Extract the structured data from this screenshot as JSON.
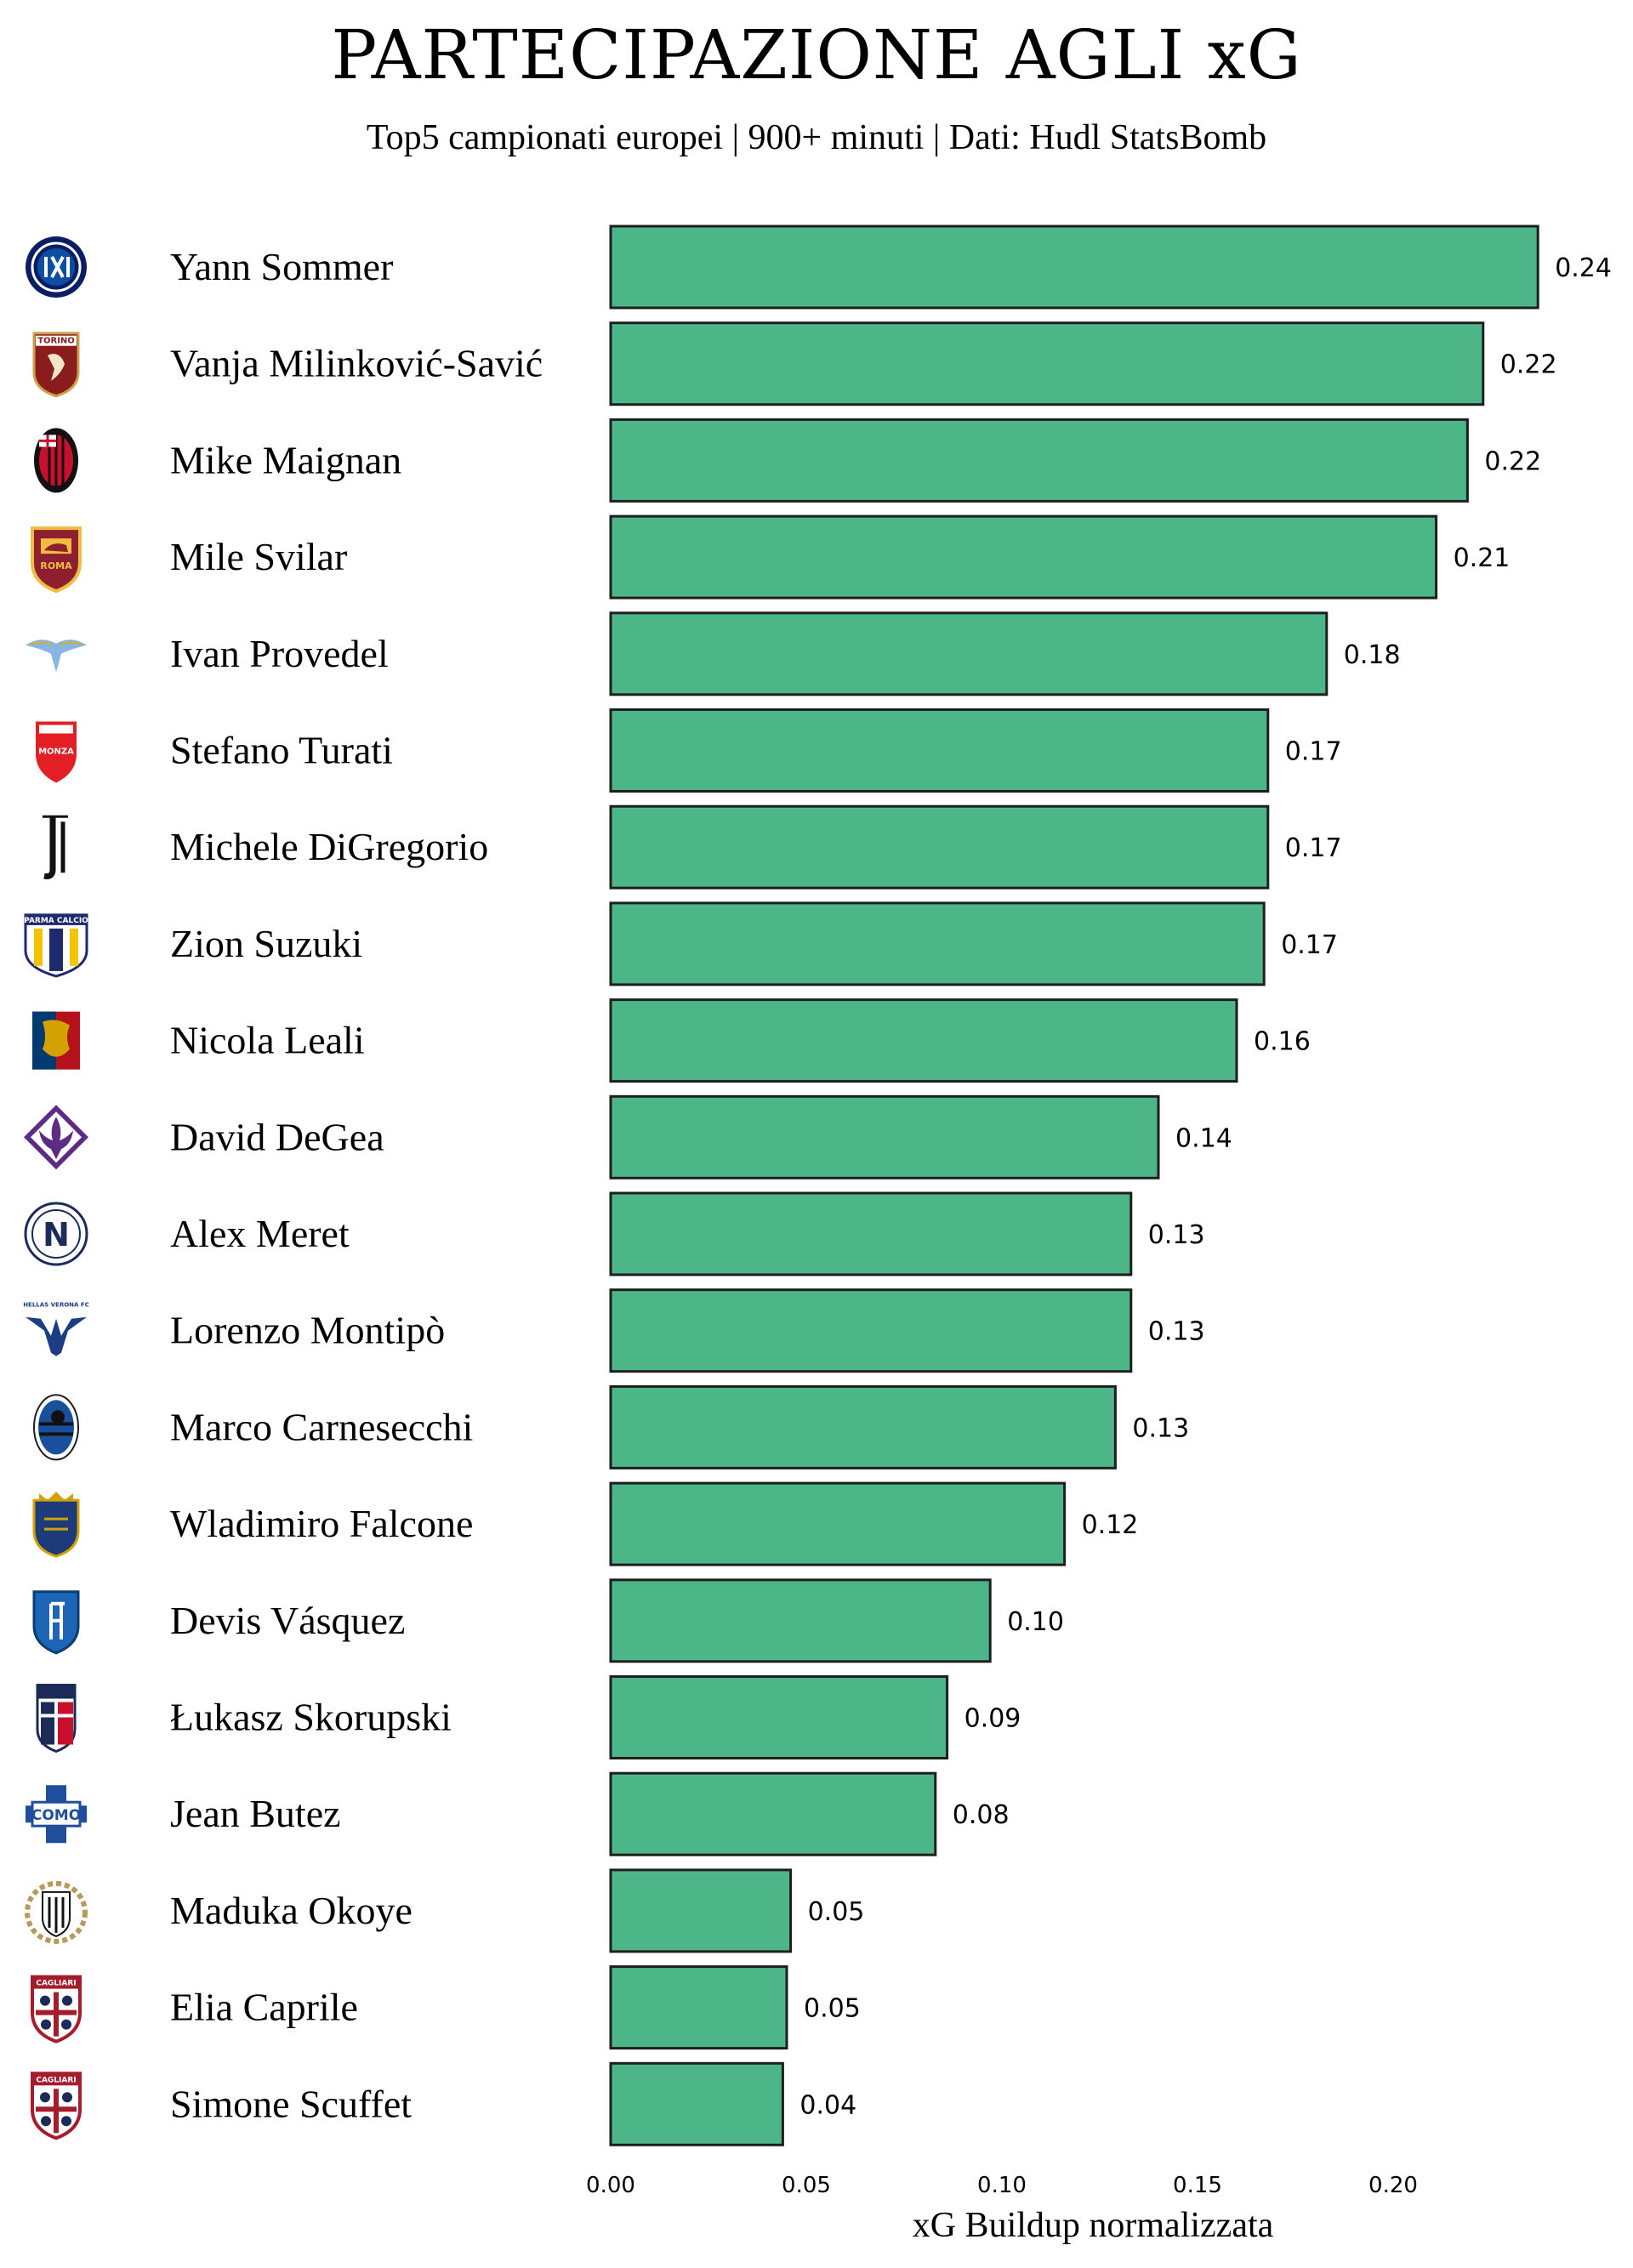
{
  "chart_data": {
    "type": "bar",
    "orientation": "horizontal",
    "title": "PARTECIPAZIONE AGLI xG",
    "subtitle": "Top5 campionati europei | 900+ minuti | Dati: Hudl StatsBomb",
    "xlabel": "xG Buildup normalizzata",
    "xlim": [
      0,
      0.24
    ],
    "xticks": [
      "0.00",
      "0.05",
      "0.10",
      "0.15",
      "0.20"
    ],
    "bar_color": "#4db688",
    "players": [
      {
        "name": "Yann Sommer",
        "value": 0.237,
        "label": "0.24",
        "club_icon": "inter-crest-icon"
      },
      {
        "name": "Vanja Milinković-Savić",
        "value": 0.223,
        "label": "0.22",
        "club_icon": "torino-crest-icon"
      },
      {
        "name": "Mike Maignan",
        "value": 0.219,
        "label": "0.22",
        "club_icon": "milan-crest-icon"
      },
      {
        "name": "Mile Svilar",
        "value": 0.211,
        "label": "0.21",
        "club_icon": "roma-crest-icon"
      },
      {
        "name": "Ivan Provedel",
        "value": 0.183,
        "label": "0.18",
        "club_icon": "lazio-crest-icon"
      },
      {
        "name": "Stefano Turati",
        "value": 0.168,
        "label": "0.17",
        "club_icon": "monza-crest-icon"
      },
      {
        "name": "Michele DiGregorio",
        "value": 0.168,
        "label": "0.17",
        "club_icon": "juventus-crest-icon"
      },
      {
        "name": "Zion Suzuki",
        "value": 0.167,
        "label": "0.17",
        "club_icon": "parma-crest-icon"
      },
      {
        "name": "Nicola Leali",
        "value": 0.16,
        "label": "0.16",
        "club_icon": "genoa-crest-icon"
      },
      {
        "name": "David DeGea",
        "value": 0.14,
        "label": "0.14",
        "club_icon": "fiorentina-crest-icon"
      },
      {
        "name": "Alex Meret",
        "value": 0.133,
        "label": "0.13",
        "club_icon": "napoli-crest-icon"
      },
      {
        "name": "Lorenzo Montipò",
        "value": 0.133,
        "label": "0.13",
        "club_icon": "verona-crest-icon"
      },
      {
        "name": "Marco Carnesecchi",
        "value": 0.129,
        "label": "0.13",
        "club_icon": "atalanta-crest-icon"
      },
      {
        "name": "Wladimiro Falcone",
        "value": 0.116,
        "label": "0.12",
        "club_icon": "lecce-crest-icon"
      },
      {
        "name": "Devis Vásquez",
        "value": 0.097,
        "label": "0.10",
        "club_icon": "empoli-crest-icon"
      },
      {
        "name": "Łukasz Skorupski",
        "value": 0.086,
        "label": "0.09",
        "club_icon": "bologna-crest-icon"
      },
      {
        "name": "Jean Butez",
        "value": 0.083,
        "label": "0.08",
        "club_icon": "como-crest-icon"
      },
      {
        "name": "Maduka Okoye",
        "value": 0.046,
        "label": "0.05",
        "club_icon": "udinese-crest-icon"
      },
      {
        "name": "Elia Caprile",
        "value": 0.045,
        "label": "0.05",
        "club_icon": "cagliari-crest-icon"
      },
      {
        "name": "Simone Scuffet",
        "value": 0.044,
        "label": "0.04",
        "club_icon": "cagliari-crest-icon"
      }
    ]
  },
  "crest_text": {
    "torino": "TORINO",
    "roma": "ROMA",
    "monza": "MONZA",
    "parma": "PARMA CALCIO",
    "napoli": "N",
    "verona": "HELLAS VERONA FC",
    "como": "COMO",
    "cagliari": "CAGLIARI"
  }
}
